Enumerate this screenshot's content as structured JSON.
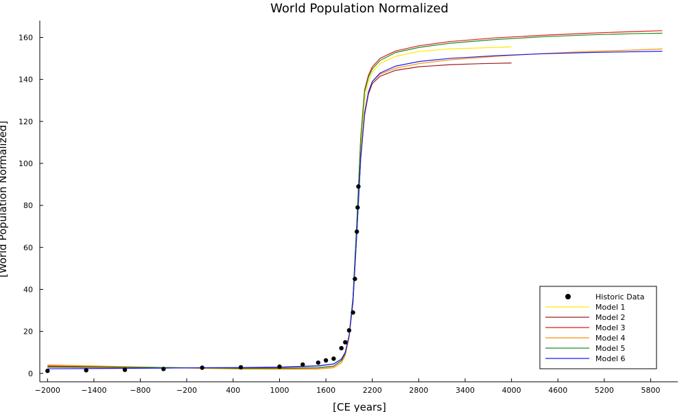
{
  "chart_data": {
    "type": "line",
    "title": "World Population Normalized",
    "xlabel": "[CE years]",
    "ylabel": "[World Population Normalized]",
    "xlim": [
      -2100,
      6150
    ],
    "ylim": [
      -4,
      168
    ],
    "x_ticks": [
      -2000,
      -1400,
      -800,
      -200,
      400,
      1000,
      1600,
      2200,
      2800,
      3400,
      4000,
      4600,
      5200,
      5800
    ],
    "x_tick_labels": [
      "−2000",
      "−1400",
      "−800",
      "−200",
      "400",
      "1000",
      "1600",
      "2200",
      "2800",
      "3400",
      "4000",
      "4600",
      "5200",
      "5800"
    ],
    "y_ticks": [
      0,
      20,
      40,
      60,
      80,
      100,
      120,
      140,
      160
    ],
    "y_tick_labels": [
      "0",
      "20",
      "40",
      "60",
      "80",
      "100",
      "120",
      "140",
      "160"
    ],
    "grid": false,
    "legend_position": "bottom-right",
    "historic": {
      "name": "Historic Data",
      "color": "#000000",
      "x": [
        -2000,
        -1500,
        -1000,
        -500,
        0,
        500,
        1000,
        1300,
        1500,
        1600,
        1700,
        1800,
        1850,
        1900,
        1950,
        1975,
        2000,
        2010,
        2020
      ],
      "y": [
        1.2,
        1.5,
        1.7,
        2.1,
        2.7,
        2.9,
        3.2,
        4.2,
        5.1,
        6.2,
        7.0,
        12.0,
        14.8,
        20.5,
        29.0,
        45.0,
        67.5,
        79.0,
        89.0
      ]
    },
    "series": [
      {
        "name": "Model 1",
        "color": "#ffea00",
        "x": [
          -2000,
          -500,
          0,
          500,
          1000,
          1500,
          1700,
          1800,
          1850,
          1900,
          1950,
          2000,
          2050,
          2100,
          2150,
          2200,
          2300,
          2500,
          2800,
          3200,
          3600,
          4000
        ],
        "y": [
          3.5,
          2.8,
          2.5,
          2.3,
          2.3,
          2.6,
          3.4,
          6.0,
          9.5,
          18.0,
          35.0,
          70.0,
          108.0,
          130.0,
          139.0,
          143.5,
          147.5,
          151.0,
          153.3,
          154.5,
          155.0,
          155.5
        ]
      },
      {
        "name": "Model 2",
        "color": "#a01e1e",
        "x": [
          -2000,
          -500,
          0,
          500,
          1000,
          1500,
          1700,
          1800,
          1850,
          1900,
          1950,
          2000,
          2050,
          2100,
          2150,
          2200,
          2300,
          2500,
          2800,
          3200,
          3600,
          4000
        ],
        "y": [
          3.0,
          2.7,
          2.6,
          2.6,
          2.8,
          3.5,
          4.5,
          6.8,
          10.0,
          18.0,
          34.0,
          67.0,
          102.0,
          123.0,
          133.0,
          138.0,
          141.5,
          144.3,
          146.0,
          147.0,
          147.5,
          147.8
        ]
      },
      {
        "name": "Model 3",
        "color": "#e11b1b",
        "x": [
          -2000,
          -500,
          0,
          500,
          1000,
          1500,
          1700,
          1800,
          1850,
          1900,
          1950,
          2000,
          2050,
          2100,
          2150,
          2200,
          2300,
          2500,
          2800,
          3200,
          3800,
          4400,
          5000,
          5600,
          5950
        ],
        "y": [
          3.5,
          2.8,
          2.5,
          2.3,
          2.3,
          2.6,
          3.4,
          6.0,
          9.5,
          18.0,
          36.0,
          72.0,
          112.0,
          135.0,
          142.0,
          146.0,
          150.0,
          153.5,
          156.0,
          158.0,
          159.8,
          161.0,
          162.0,
          162.8,
          163.2
        ]
      },
      {
        "name": "Model 4",
        "color": "#ff8c00",
        "x": [
          -2000,
          -500,
          0,
          500,
          1000,
          1500,
          1700,
          1800,
          1850,
          1900,
          1950,
          2000,
          2050,
          2100,
          2150,
          2200,
          2300,
          2500,
          2800,
          3200,
          3800,
          4400,
          5000,
          5600,
          5950
        ],
        "y": [
          4.0,
          2.8,
          2.4,
          2.1,
          2.0,
          2.1,
          2.7,
          5.0,
          8.5,
          17.0,
          34.0,
          68.0,
          103.0,
          124.0,
          134.0,
          139.0,
          142.5,
          145.3,
          147.5,
          149.3,
          151.0,
          152.3,
          153.3,
          154.0,
          154.5
        ]
      },
      {
        "name": "Model 5",
        "color": "#1e8c1e",
        "x": [
          -2000,
          -500,
          0,
          500,
          1000,
          1500,
          1700,
          1800,
          1850,
          1900,
          1950,
          2000,
          2050,
          2100,
          2150,
          2200,
          2300,
          2500,
          2800,
          3200,
          3800,
          4400,
          5000,
          5600,
          5950
        ],
        "y": [
          3.3,
          2.8,
          2.6,
          2.4,
          2.4,
          2.7,
          3.5,
          6.1,
          9.6,
          18.0,
          36.0,
          72.0,
          112.0,
          134.0,
          141.0,
          145.0,
          149.0,
          152.8,
          155.2,
          157.2,
          159.0,
          160.3,
          161.2,
          161.8,
          162.0
        ]
      },
      {
        "name": "Model 6",
        "color": "#1c1cf0",
        "x": [
          -2000,
          -500,
          0,
          500,
          1000,
          1500,
          1700,
          1800,
          1850,
          1900,
          1950,
          2000,
          2050,
          2100,
          2150,
          2200,
          2300,
          2500,
          2800,
          3200,
          3800,
          4400,
          5000,
          5600,
          5950
        ],
        "y": [
          2.2,
          2.5,
          2.7,
          2.8,
          3.0,
          3.6,
          4.5,
          6.8,
          10.0,
          18.0,
          34.0,
          67.0,
          103.0,
          124.0,
          134.0,
          139.0,
          143.0,
          146.3,
          148.5,
          150.0,
          151.3,
          152.2,
          152.8,
          153.2,
          153.4
        ]
      }
    ]
  }
}
